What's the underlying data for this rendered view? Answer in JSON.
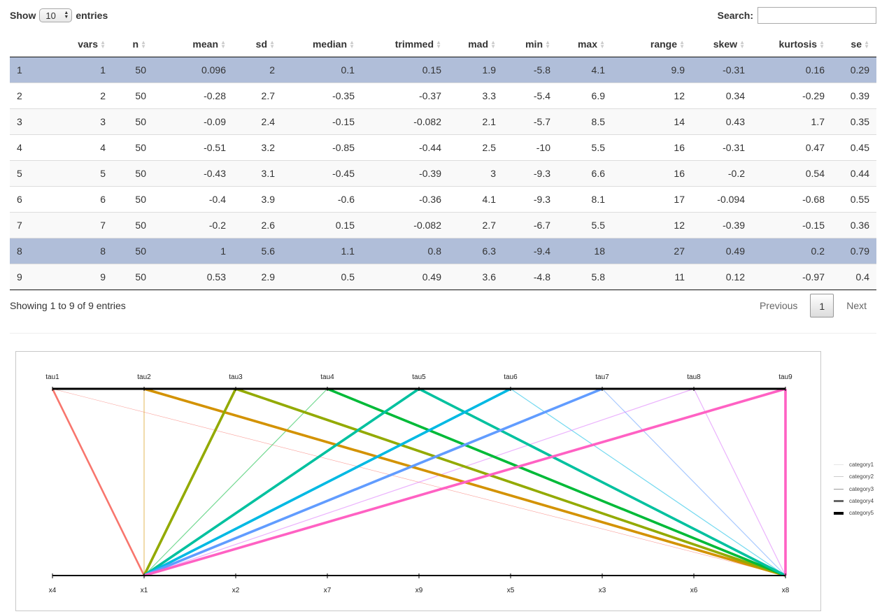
{
  "controls": {
    "show_label": "Show",
    "entries_label": "entries",
    "length_value": "10",
    "search_label": "Search:",
    "search_value": ""
  },
  "table": {
    "columns": [
      "vars",
      "n",
      "mean",
      "sd",
      "median",
      "trimmed",
      "mad",
      "min",
      "max",
      "range",
      "skew",
      "kurtosis",
      "se"
    ],
    "rows": [
      {
        "rn": "1",
        "cells": [
          "1",
          "50",
          "0.096",
          "2",
          "0.1",
          "0.15",
          "1.9",
          "-5.8",
          "4.1",
          "9.9",
          "-0.31",
          "0.16",
          "0.29"
        ],
        "selected": true
      },
      {
        "rn": "2",
        "cells": [
          "2",
          "50",
          "-0.28",
          "2.7",
          "-0.35",
          "-0.37",
          "3.3",
          "-5.4",
          "6.9",
          "12",
          "0.34",
          "-0.29",
          "0.39"
        ],
        "selected": false
      },
      {
        "rn": "3",
        "cells": [
          "3",
          "50",
          "-0.09",
          "2.4",
          "-0.15",
          "-0.082",
          "2.1",
          "-5.7",
          "8.5",
          "14",
          "0.43",
          "1.7",
          "0.35"
        ],
        "selected": false
      },
      {
        "rn": "4",
        "cells": [
          "4",
          "50",
          "-0.51",
          "3.2",
          "-0.85",
          "-0.44",
          "2.5",
          "-10",
          "5.5",
          "16",
          "-0.31",
          "0.47",
          "0.45"
        ],
        "selected": false
      },
      {
        "rn": "5",
        "cells": [
          "5",
          "50",
          "-0.43",
          "3.1",
          "-0.45",
          "-0.39",
          "3",
          "-9.3",
          "6.6",
          "16",
          "-0.2",
          "0.54",
          "0.44"
        ],
        "selected": false
      },
      {
        "rn": "6",
        "cells": [
          "6",
          "50",
          "-0.4",
          "3.9",
          "-0.6",
          "-0.36",
          "4.1",
          "-9.3",
          "8.1",
          "17",
          "-0.094",
          "-0.68",
          "0.55"
        ],
        "selected": false
      },
      {
        "rn": "7",
        "cells": [
          "7",
          "50",
          "-0.2",
          "2.6",
          "0.15",
          "-0.082",
          "2.7",
          "-6.7",
          "5.5",
          "12",
          "-0.39",
          "-0.15",
          "0.36"
        ],
        "selected": false
      },
      {
        "rn": "8",
        "cells": [
          "8",
          "50",
          "1",
          "5.6",
          "1.1",
          "0.8",
          "6.3",
          "-9.4",
          "18",
          "27",
          "0.49",
          "0.2",
          "0.79"
        ],
        "selected": true
      },
      {
        "rn": "9",
        "cells": [
          "9",
          "50",
          "0.53",
          "2.9",
          "0.5",
          "0.49",
          "3.6",
          "-4.8",
          "5.8",
          "11",
          "0.12",
          "-0.97",
          "0.4"
        ],
        "selected": false
      }
    ]
  },
  "footer": {
    "info": "Showing 1 to 9 of 9 entries",
    "previous": "Previous",
    "page": "1",
    "next": "Next"
  },
  "chart_data": {
    "type": "parallel-sets",
    "top_axis": [
      "tau1",
      "tau2",
      "tau3",
      "tau4",
      "tau5",
      "tau6",
      "tau7",
      "tau8",
      "tau9"
    ],
    "bottom_axis": [
      "x4",
      "x1",
      "x2",
      "x7",
      "x9",
      "x5",
      "x3",
      "x6",
      "x8"
    ],
    "links": [
      {
        "from": "tau1",
        "to": "x1",
        "color": "#f8766d",
        "category": "category4"
      },
      {
        "from": "tau1",
        "to": "x8",
        "color": "#f8766d",
        "category": "category1"
      },
      {
        "from": "tau2",
        "to": "x1",
        "color": "#d39200",
        "category": "category2"
      },
      {
        "from": "tau2",
        "to": "x8",
        "color": "#d39200",
        "category": "category5"
      },
      {
        "from": "tau3",
        "to": "x1",
        "color": "#93aa00",
        "category": "category5"
      },
      {
        "from": "tau3",
        "to": "x8",
        "color": "#93aa00",
        "category": "category5"
      },
      {
        "from": "tau4",
        "to": "x1",
        "color": "#00ba38",
        "category": "category2"
      },
      {
        "from": "tau4",
        "to": "x8",
        "color": "#00ba38",
        "category": "category5"
      },
      {
        "from": "tau5",
        "to": "x1",
        "color": "#00c19f",
        "category": "category5"
      },
      {
        "from": "tau5",
        "to": "x8",
        "color": "#00c19f",
        "category": "category5"
      },
      {
        "from": "tau6",
        "to": "x1",
        "color": "#00b9e3",
        "category": "category5"
      },
      {
        "from": "tau6",
        "to": "x8",
        "color": "#00b9e3",
        "category": "category2"
      },
      {
        "from": "tau7",
        "to": "x1",
        "color": "#619cff",
        "category": "category5"
      },
      {
        "from": "tau7",
        "to": "x8",
        "color": "#619cff",
        "category": "category2"
      },
      {
        "from": "tau8",
        "to": "x1",
        "color": "#db72fb",
        "category": "category2"
      },
      {
        "from": "tau8",
        "to": "x8",
        "color": "#db72fb",
        "category": "category2"
      },
      {
        "from": "tau9",
        "to": "x1",
        "color": "#ff61c3",
        "category": "category5"
      },
      {
        "from": "tau9",
        "to": "x8",
        "color": "#ff61c3",
        "category": "category5"
      }
    ],
    "legend": [
      "category1",
      "category2",
      "category3",
      "category4",
      "category5"
    ],
    "legend_placement": "right"
  }
}
